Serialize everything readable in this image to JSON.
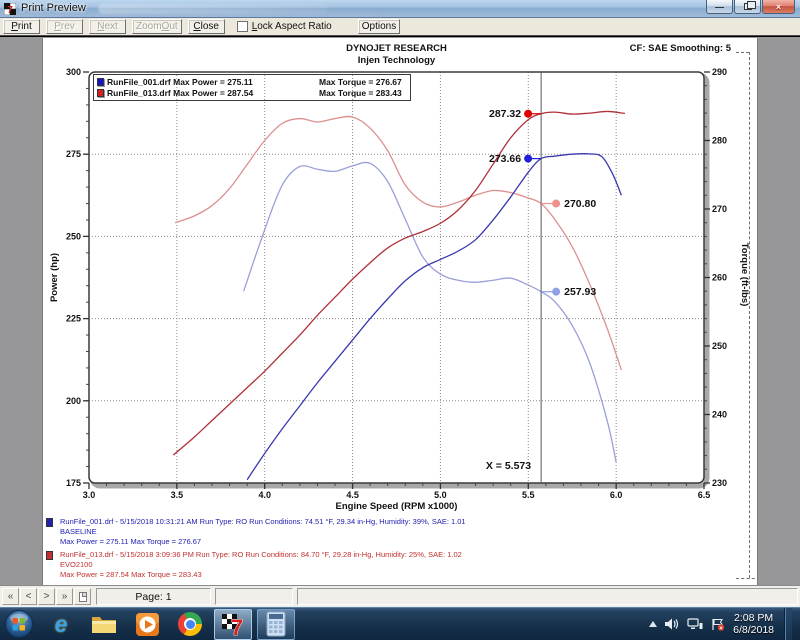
{
  "window": {
    "title": "Print Preview"
  },
  "toolbar": {
    "print": "Print",
    "prev": "Prev",
    "next": "Next",
    "zoom_out": "Zoom Out",
    "close": "Close",
    "lock_aspect_ratio": "Lock Aspect Ratio",
    "options": "Options"
  },
  "report": {
    "title": "DYNOJET RESEARCH",
    "subtitle": "Injen Technology",
    "cf_note": "CF: SAE  Smoothing: 5"
  },
  "chart_data": {
    "type": "line",
    "title": "DYNOJET RESEARCH",
    "subtitle": "Injen Technology",
    "xlabel": "Engine Speed (RPM x1000)",
    "ylabel_left": "Power (hp)",
    "ylabel_right": "Torque (ft-lbs)",
    "xlim": [
      3.0,
      6.5
    ],
    "xtick_step": 0.5,
    "xminor_step": 0.1,
    "ylim_left": [
      175,
      300
    ],
    "ytick_left_step": 25,
    "yminor_left_step": 5,
    "ylim_right": [
      230,
      290
    ],
    "ytick_right_step": 10,
    "yminor_right_step": 2,
    "grid": "dotted",
    "cursor_x": 5.573,
    "cursor_text": "X = 5.573",
    "cursor_labels": [
      {
        "text": "287.32",
        "value": 287.32,
        "axis": "left",
        "side": "left",
        "dot_color": "#e00000"
      },
      {
        "text": "273.66",
        "value": 273.66,
        "axis": "left",
        "side": "left",
        "dot_color": "#2020d8"
      },
      {
        "text": "270.80",
        "value": 270.8,
        "axis": "right",
        "side": "right",
        "dot_color": "#ef8f8f"
      },
      {
        "text": "257.93",
        "value": 257.93,
        "axis": "right",
        "side": "right",
        "dot_color": "#8f9fe8"
      }
    ],
    "legend_rows": [
      {
        "color": "#1414cc",
        "label": "RunFile_001.drf Max Power = 275.11",
        "torque": "Max Torque = 276.67"
      },
      {
        "color": "#d42020",
        "label": "RunFile_013.drf Max Power = 287.54",
        "torque": "Max Torque = 283.43"
      }
    ],
    "series": [
      {
        "name": "RunFile_013 Torque",
        "axis": "right",
        "color": "#dc9090",
        "points": [
          [
            3.49,
            268
          ],
          [
            3.6,
            269
          ],
          [
            3.7,
            270.5
          ],
          [
            3.8,
            273
          ],
          [
            3.9,
            276.5
          ],
          [
            4.0,
            280
          ],
          [
            4.1,
            282.5
          ],
          [
            4.2,
            283.2
          ],
          [
            4.3,
            282.7
          ],
          [
            4.4,
            283.2
          ],
          [
            4.5,
            283.43
          ],
          [
            4.6,
            281.8
          ],
          [
            4.7,
            278.5
          ],
          [
            4.8,
            273.5
          ],
          [
            4.9,
            271
          ],
          [
            5.0,
            270.3
          ],
          [
            5.1,
            271
          ],
          [
            5.2,
            272
          ],
          [
            5.3,
            272.7
          ],
          [
            5.4,
            272.4
          ],
          [
            5.5,
            271.6
          ],
          [
            5.573,
            270.8
          ],
          [
            5.65,
            268.5
          ],
          [
            5.75,
            264.5
          ],
          [
            5.85,
            259
          ],
          [
            5.95,
            252.5
          ],
          [
            6.03,
            246.5
          ]
        ]
      },
      {
        "name": "RunFile_001 Torque",
        "axis": "right",
        "color": "#9aa0d8",
        "points": [
          [
            3.88,
            258
          ],
          [
            4.0,
            267
          ],
          [
            4.1,
            273.5
          ],
          [
            4.2,
            276.2
          ],
          [
            4.3,
            275.8
          ],
          [
            4.4,
            275.5
          ],
          [
            4.5,
            276.3
          ],
          [
            4.6,
            276.67
          ],
          [
            4.7,
            274
          ],
          [
            4.8,
            268.5
          ],
          [
            4.9,
            263
          ],
          [
            5.0,
            260.5
          ],
          [
            5.1,
            259.6
          ],
          [
            5.2,
            259.3
          ],
          [
            5.3,
            259.6
          ],
          [
            5.4,
            259.9
          ],
          [
            5.5,
            258.9
          ],
          [
            5.573,
            257.93
          ],
          [
            5.65,
            256.5
          ],
          [
            5.75,
            253
          ],
          [
            5.85,
            247.5
          ],
          [
            5.95,
            239
          ],
          [
            6.0,
            233
          ]
        ]
      },
      {
        "name": "RunFile_001 Power",
        "axis": "left",
        "color": "#3939b0",
        "points": [
          [
            3.9,
            176
          ],
          [
            4.0,
            184
          ],
          [
            4.1,
            191.5
          ],
          [
            4.2,
            198.5
          ],
          [
            4.3,
            205.5
          ],
          [
            4.4,
            212
          ],
          [
            4.5,
            218.5
          ],
          [
            4.6,
            225
          ],
          [
            4.7,
            231
          ],
          [
            4.8,
            236.5
          ],
          [
            4.9,
            240.5
          ],
          [
            5.0,
            243
          ],
          [
            5.1,
            245.5
          ],
          [
            5.2,
            249
          ],
          [
            5.3,
            255
          ],
          [
            5.4,
            262
          ],
          [
            5.5,
            269.5
          ],
          [
            5.573,
            273.66
          ],
          [
            5.65,
            274.4
          ],
          [
            5.75,
            275
          ],
          [
            5.85,
            275.1
          ],
          [
            5.92,
            274.2
          ],
          [
            5.98,
            269
          ],
          [
            6.03,
            262.5
          ]
        ]
      },
      {
        "name": "RunFile_013 Power",
        "axis": "left",
        "color": "#b03038",
        "points": [
          [
            3.48,
            183.5
          ],
          [
            3.6,
            189
          ],
          [
            3.7,
            194
          ],
          [
            3.8,
            199
          ],
          [
            3.9,
            204
          ],
          [
            4.0,
            209
          ],
          [
            4.1,
            214.5
          ],
          [
            4.2,
            220
          ],
          [
            4.3,
            226
          ],
          [
            4.4,
            231.5
          ],
          [
            4.5,
            237
          ],
          [
            4.6,
            242
          ],
          [
            4.7,
            246.5
          ],
          [
            4.8,
            249.5
          ],
          [
            4.9,
            251.5
          ],
          [
            5.0,
            254
          ],
          [
            5.1,
            258
          ],
          [
            5.2,
            264
          ],
          [
            5.3,
            272
          ],
          [
            5.4,
            280
          ],
          [
            5.5,
            285.5
          ],
          [
            5.573,
            287.32
          ],
          [
            5.65,
            287.8
          ],
          [
            5.75,
            287.2
          ],
          [
            5.85,
            287.5
          ],
          [
            5.95,
            288
          ],
          [
            6.05,
            287.4
          ]
        ]
      }
    ]
  },
  "runs": [
    {
      "color": "#2222b2",
      "line1": "RunFile_001.drf - 5/15/2018 10:31:21 AM  Run Type: RO  Run Conditions: 74.51 °F, 29.34 in-Hg,  Humidity:  39%, SAE: 1.01",
      "line2": "BASELINE",
      "line3": "Max Power = 275.11  Max Torque = 276.67"
    },
    {
      "color": "#c03030",
      "line1": "RunFile_013.drf - 5/15/2018 3:09:36 PM  Run Type: RO  Run Conditions: 84.70 °F, 29.28 in-Hg,  Humidity:  25%, SAE: 1.02",
      "line2": "EVO2100",
      "line3": "Max Power = 287.54  Max Torque = 283.43"
    }
  ],
  "statusbar": {
    "nav": [
      "«",
      "<",
      ">",
      "»"
    ],
    "page_label": "Page: 1"
  },
  "taskbar": {
    "apps": [
      "internet-explorer",
      "windows-explorer",
      "windows-media-player",
      "google-chrome",
      "winpep-7",
      "calculator"
    ],
    "open_apps": [
      "winpep-7",
      "calculator"
    ],
    "tray_icons": [
      "hidden-icons",
      "volume",
      "network",
      "action-center"
    ],
    "time": "2:08 PM",
    "date": "6/8/2018"
  },
  "colors": {
    "power_run1": "#3939b0",
    "power_run2": "#b03038",
    "torque_run1": "#9aa0d8",
    "torque_run2": "#dc9090",
    "page_bg": "#ffffff",
    "preview_bg": "#97979a"
  }
}
